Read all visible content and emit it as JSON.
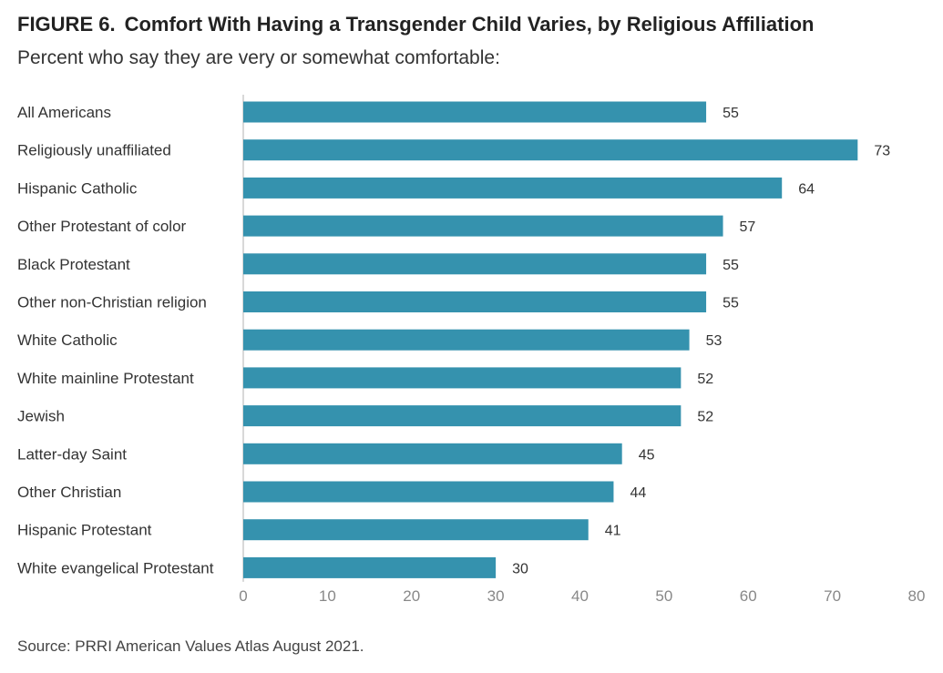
{
  "figure": {
    "label": "FIGURE 6.",
    "title": "Comfort With Having a Transgender Child Varies, by Religious Affiliation",
    "subtitle": "Percent who say they are very or somewhat comfortable:",
    "source": "Source: PRRI American Values Atlas August 2021."
  },
  "chart_data": {
    "type": "bar",
    "orientation": "horizontal",
    "categories": [
      "All Americans",
      "Religiously unaffiliated",
      "Hispanic Catholic",
      "Other Protestant of color",
      "Black Protestant",
      "Other non-Christian religion",
      "White Catholic",
      "White mainline Protestant",
      "Jewish",
      "Latter-day Saint",
      "Other Christian",
      "Hispanic Protestant",
      "White evangelical Protestant"
    ],
    "values": [
      55,
      73,
      64,
      57,
      55,
      55,
      53,
      52,
      52,
      45,
      44,
      41,
      30
    ],
    "xlim": [
      0,
      80
    ],
    "xticks": [
      0,
      10,
      20,
      30,
      40,
      50,
      60,
      70,
      80
    ],
    "bar_color": "#3592ae",
    "axis_color": "#cccccc",
    "grid": false,
    "legend": "none"
  }
}
